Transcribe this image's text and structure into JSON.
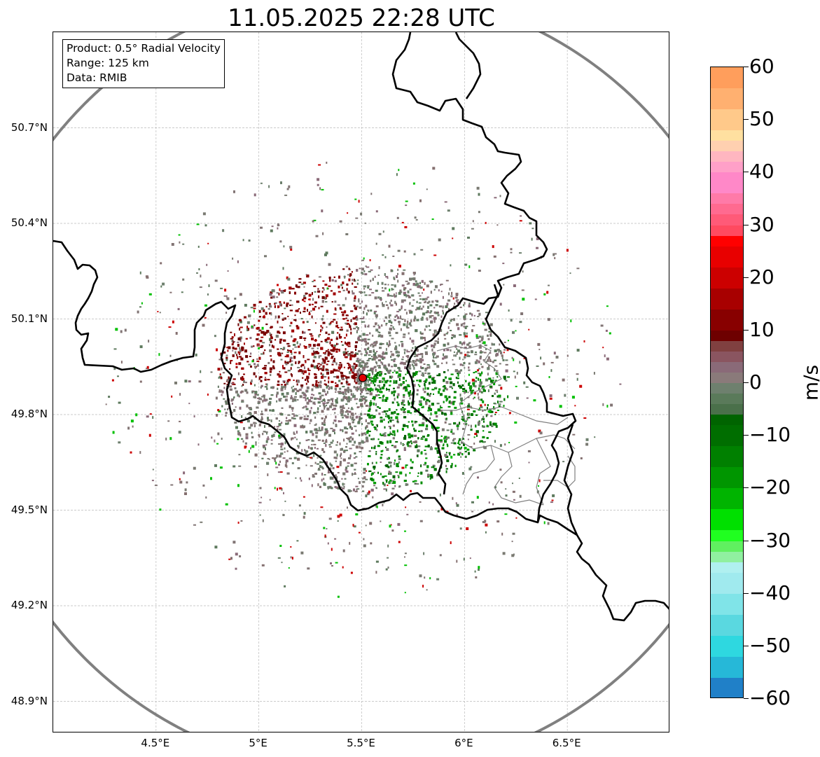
{
  "title": "11.05.2025 22:28 UTC",
  "info_box": {
    "product": "Product: 0.5° Radial Velocity",
    "range": "Range: 125 km",
    "data": "Data: RMIB"
  },
  "map": {
    "lon_range": [
      4.0,
      7.0
    ],
    "lat_range": [
      48.8,
      51.0
    ],
    "lat_ticks": [
      {
        "value": 50.7,
        "label": "50.7°N"
      },
      {
        "value": 50.4,
        "label": "50.4°N"
      },
      {
        "value": 50.1,
        "label": "50.1°N"
      },
      {
        "value": 49.8,
        "label": "49.8°N"
      },
      {
        "value": 49.5,
        "label": "49.5°N"
      },
      {
        "value": 49.2,
        "label": "49.2°N"
      },
      {
        "value": 48.9,
        "label": "48.9°N"
      }
    ],
    "lon_ticks": [
      {
        "value": 4.5,
        "label": "4.5°E"
      },
      {
        "value": 5.0,
        "label": "5°E"
      },
      {
        "value": 5.5,
        "label": "5.5°E"
      },
      {
        "value": 6.0,
        "label": "6°E"
      },
      {
        "value": 6.5,
        "label": "6.5°E"
      }
    ],
    "radar_site": {
      "lon": 5.505,
      "lat": 49.915,
      "color": "#e00000"
    },
    "range_ring_color": "#808080",
    "border_color": "#000000",
    "admin_border_color": "#808080",
    "grid": true
  },
  "colorbar": {
    "unit": "m/s",
    "min": -60,
    "max": 60,
    "ticks": [
      {
        "value": 60,
        "label": "60"
      },
      {
        "value": 50,
        "label": "50"
      },
      {
        "value": 40,
        "label": "40"
      },
      {
        "value": 30,
        "label": "30"
      },
      {
        "value": 20,
        "label": "20"
      },
      {
        "value": 10,
        "label": "10"
      },
      {
        "value": 0,
        "label": "0"
      },
      {
        "value": -10,
        "label": "−10"
      },
      {
        "value": -20,
        "label": "−20"
      },
      {
        "value": -30,
        "label": "−30"
      },
      {
        "value": -40,
        "label": "−40"
      },
      {
        "value": -50,
        "label": "−50"
      },
      {
        "value": -60,
        "label": "−60"
      }
    ],
    "stops": [
      {
        "from": 56,
        "to": 60,
        "color": "#ff9e5c"
      },
      {
        "from": 52,
        "to": 56,
        "color": "#ffb070"
      },
      {
        "from": 48,
        "to": 52,
        "color": "#ffc98a"
      },
      {
        "from": 46,
        "to": 48,
        "color": "#ffe0a0"
      },
      {
        "from": 44,
        "to": 46,
        "color": "#ffd0b0"
      },
      {
        "from": 42,
        "to": 44,
        "color": "#ffb6c0"
      },
      {
        "from": 40,
        "to": 42,
        "color": "#ffa0c8"
      },
      {
        "from": 36,
        "to": 40,
        "color": "#ff88c8"
      },
      {
        "from": 34,
        "to": 36,
        "color": "#ff7aa8"
      },
      {
        "from": 32,
        "to": 34,
        "color": "#ff6a90"
      },
      {
        "from": 30,
        "to": 32,
        "color": "#ff5a78"
      },
      {
        "from": 28,
        "to": 30,
        "color": "#ff4a60"
      },
      {
        "from": 26,
        "to": 28,
        "color": "#ff0000"
      },
      {
        "from": 22,
        "to": 26,
        "color": "#e80000"
      },
      {
        "from": 18,
        "to": 22,
        "color": "#cc0000"
      },
      {
        "from": 14,
        "to": 18,
        "color": "#a80000"
      },
      {
        "from": 10,
        "to": 14,
        "color": "#880000"
      },
      {
        "from": 8,
        "to": 10,
        "color": "#6e0000"
      },
      {
        "from": 6,
        "to": 8,
        "color": "#804040"
      },
      {
        "from": 4,
        "to": 6,
        "color": "#8a5560"
      },
      {
        "from": 2,
        "to": 4,
        "color": "#8a6a78"
      },
      {
        "from": 0,
        "to": 2,
        "color": "#8a7a7a"
      },
      {
        "from": -2,
        "to": 0,
        "color": "#6e806e"
      },
      {
        "from": -4,
        "to": -2,
        "color": "#5a7a5a"
      },
      {
        "from": -6,
        "to": -4,
        "color": "#4a704a"
      },
      {
        "from": -8,
        "to": -6,
        "color": "#006400"
      },
      {
        "from": -12,
        "to": -8,
        "color": "#006e00"
      },
      {
        "from": -16,
        "to": -12,
        "color": "#008000"
      },
      {
        "from": -20,
        "to": -16,
        "color": "#009600"
      },
      {
        "from": -24,
        "to": -20,
        "color": "#00b400"
      },
      {
        "from": -28,
        "to": -24,
        "color": "#00e000"
      },
      {
        "from": -30,
        "to": -28,
        "color": "#20ff20"
      },
      {
        "from": -32,
        "to": -30,
        "color": "#60f060"
      },
      {
        "from": -34,
        "to": -32,
        "color": "#90f0a0"
      },
      {
        "from": -36,
        "to": -34,
        "color": "#b0f0f0"
      },
      {
        "from": -40,
        "to": -36,
        "color": "#a0eaee"
      },
      {
        "from": -44,
        "to": -40,
        "color": "#80e4e8"
      },
      {
        "from": -48,
        "to": -44,
        "color": "#5ad8e0"
      },
      {
        "from": -52,
        "to": -48,
        "color": "#2ed8e0"
      },
      {
        "from": -56,
        "to": -52,
        "color": "#26b8d8"
      },
      {
        "from": -60,
        "to": -56,
        "color": "#2080c8"
      }
    ]
  }
}
